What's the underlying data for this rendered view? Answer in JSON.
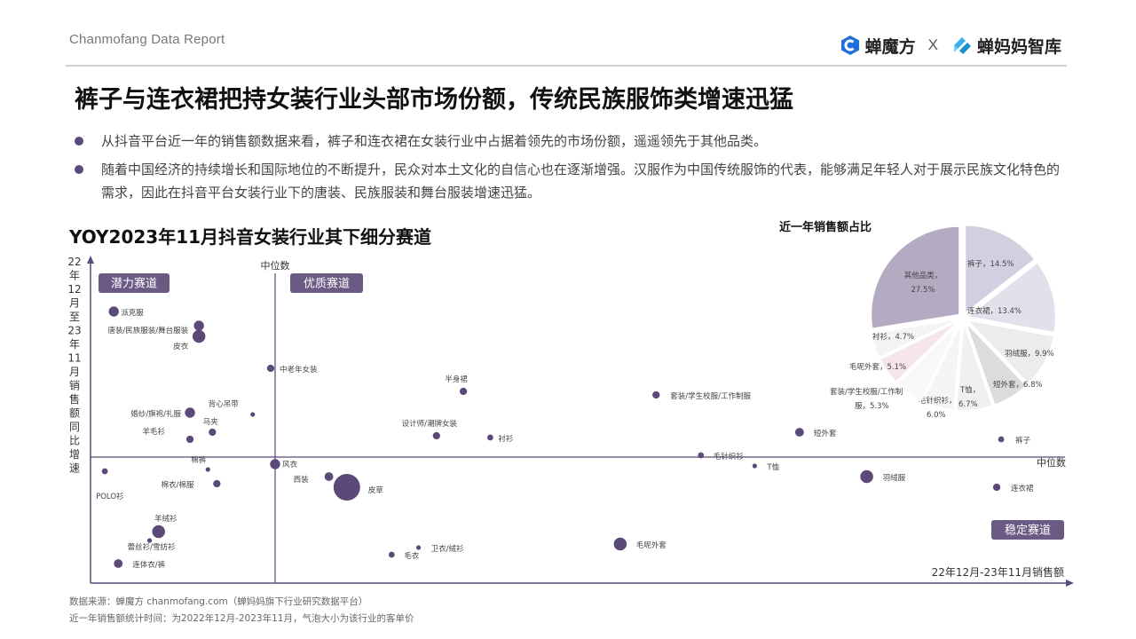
{
  "header": {
    "report_label": "Chanmofang Data Report",
    "brand1": "蝉魔方",
    "separator": "X",
    "brand2": "蝉妈妈智库"
  },
  "headline": "裤子与连衣裙把持女装行业头部市场份额，传统民族服饰类增速迅猛",
  "bullets": [
    "从抖音平台近一年的销售额数据来看，裤子和连衣裙在女装行业中占据着领先的市场份额，遥遥领先于其他品类。",
    "随着中国经济的持续增长和国际地位的不断提升，民众对本土文化的自信心也在逐渐增强。汉服作为中国传统服饰的代表，能够满足年轻人对于展示民族文化特色的需求，因此在抖音平台女装行业下的唐装、民族服装和舞台服装增速迅猛。"
  ],
  "scatter_title": "YOY2023年11月抖音女装行业其下细分赛道",
  "pie_title": "近一年销售额占比",
  "footnotes": [
    "数据来源：蝉魔方 chanmofang.com（蝉妈妈旗下行业研究数据平台）",
    "近一年销售额统计时间：为2022年12月-2023年11月，气泡大小为该行业的客单价"
  ],
  "colors": {
    "accent": "#5b4a78",
    "quadrant_label_bg": "#6b5b84",
    "axis": "#5b4a78"
  },
  "chart_data": [
    {
      "type": "scatter",
      "title": "YOY2023年11月抖音女装行业其下细分赛道",
      "xlabel": "22年12月-23年11月销售额",
      "ylabel": "22年12月至23年11月销售额同比增速",
      "x_axis_mark": "中位数",
      "y_axis_mark": "中位数",
      "quadrants": {
        "top_left": "潜力赛道",
        "top_right": "优质赛道",
        "bottom_right": "稳定赛道"
      },
      "points": [
        {
          "label": "派克服",
          "x": 4,
          "y": 8.2,
          "size": 2
        },
        {
          "label": "唐装/民族服装/舞台服装",
          "x": 23,
          "y": 7.4,
          "size": 2
        },
        {
          "label": "皮衣",
          "x": 23,
          "y": 6.8,
          "size": 3
        },
        {
          "label": "中老年女装",
          "x": 39,
          "y": 5.0,
          "size": 1
        },
        {
          "label": "背心吊带",
          "x": 35,
          "y": 2.4,
          "size": 0
        },
        {
          "label": "婚纱/旗袍/礼服",
          "x": 21,
          "y": 2.5,
          "size": 2
        },
        {
          "label": "马夹",
          "x": 26,
          "y": 1.4,
          "size": 1
        },
        {
          "label": "羊毛衫",
          "x": 21,
          "y": 1.0,
          "size": 1
        },
        {
          "label": "半身裙",
          "x": 82,
          "y": 3.7,
          "size": 1
        },
        {
          "label": "设计师/潮牌女装",
          "x": 76,
          "y": 1.2,
          "size": 1
        },
        {
          "label": "衬衫",
          "x": 88,
          "y": 1.1,
          "size": 0.5
        },
        {
          "label": "套装/学生校服/工作制服",
          "x": 125,
          "y": 3.5,
          "size": 1
        },
        {
          "label": "短外套",
          "x": 157,
          "y": 1.4,
          "size": 1.5
        },
        {
          "label": "裤子",
          "x": 202,
          "y": 1.0,
          "size": 0.5
        },
        {
          "label": "毛针织衫",
          "x": 135,
          "y": 0.1,
          "size": 0.5
        },
        {
          "label": "T恤",
          "x": 147,
          "y": -0.5,
          "size": 0
        },
        {
          "label": "羽绒服",
          "x": 172,
          "y": -1.1,
          "size": 3
        },
        {
          "label": "连衣裙",
          "x": 201,
          "y": -1.7,
          "size": 1
        },
        {
          "label": "风衣",
          "x": 40,
          "y": -0.4,
          "size": 2
        },
        {
          "label": "西装",
          "x": 52,
          "y": -1.1,
          "size": 1.5
        },
        {
          "label": "皮草",
          "x": 56,
          "y": -1.7,
          "size": 8
        },
        {
          "label": "POLO衫",
          "x": 2,
          "y": -0.8,
          "size": 0.5
        },
        {
          "label": "棉衣/棉服",
          "x": 27,
          "y": -1.5,
          "size": 1
        },
        {
          "label": "棉裤",
          "x": 25,
          "y": -0.7,
          "size": 0
        },
        {
          "label": "羊绒衫",
          "x": 14,
          "y": -4.2,
          "size": 3
        },
        {
          "label": "蕾丝衫/雪纺衫",
          "x": 12,
          "y": -4.7,
          "size": 0
        },
        {
          "label": "连体衣/裤",
          "x": 5,
          "y": -6.0,
          "size": 1.5
        },
        {
          "label": "毛衣",
          "x": 66,
          "y": -5.5,
          "size": 0.5
        },
        {
          "label": "卫衣/绒衫",
          "x": 72,
          "y": -5.1,
          "size": 0
        },
        {
          "label": "毛呢外套",
          "x": 117,
          "y": -4.9,
          "size": 3
        }
      ]
    },
    {
      "type": "pie",
      "title": "近一年销售额占比",
      "slices": [
        {
          "label": "裤子",
          "value": 14.5,
          "text": "裤子，14.5%",
          "color": "#d4cfe0"
        },
        {
          "label": "连衣裙",
          "value": 13.4,
          "text": "连衣裙，13.4%",
          "color": "#e3e0eb"
        },
        {
          "label": "羽绒服",
          "value": 9.9,
          "text": "羽绒服，9.9%",
          "color": "#ececec"
        },
        {
          "label": "短外套",
          "value": 6.8,
          "text": "短外套，6.8%",
          "color": "#dcdcdc"
        },
        {
          "label": "T恤",
          "value": 6.7,
          "text": "T恤，6.7%",
          "color": "#f0f0f0"
        },
        {
          "label": "毛针织衫",
          "value": 6.0,
          "text": "毛针织衫，6.0%",
          "color": "#f5f5f5"
        },
        {
          "label": "套装/学生校服/工作制服",
          "value": 5.3,
          "text": "套装/学生校服/工作制服，5.3%",
          "color": "#f8f8f8"
        },
        {
          "label": "毛呢外套",
          "value": 5.1,
          "text": "毛呢外套，5.1%",
          "color": "#f7e6e9"
        },
        {
          "label": "衬衫",
          "value": 4.7,
          "text": "衬衫，4.7%",
          "color": "#f4f4f4"
        },
        {
          "label": "其他品类",
          "value": 27.5,
          "text": "其他品类，27.5%",
          "color": "#b4abc2"
        }
      ]
    }
  ]
}
